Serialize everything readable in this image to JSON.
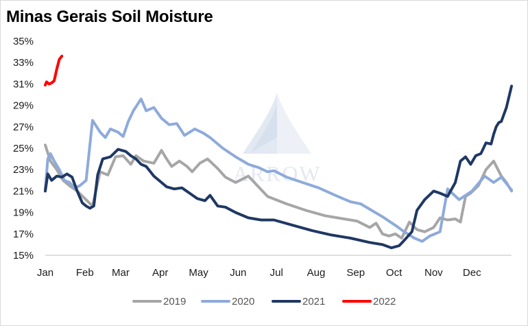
{
  "chart_data": {
    "type": "line",
    "title": "Minas Gerais Soil Moisture",
    "xlabel": "",
    "ylabel": "",
    "x_ticks": [
      "Jan",
      "Feb",
      "Mar",
      "Apr",
      "May",
      "Jun",
      "Jul",
      "Aug",
      "Sep",
      "Oct",
      "Nov",
      "Dec"
    ],
    "y_ticks": [
      "15%",
      "17%",
      "19%",
      "21%",
      "23%",
      "25%",
      "27%",
      "29%",
      "31%",
      "33%",
      "35%"
    ],
    "ylim": [
      15,
      35
    ],
    "xlim": [
      1,
      366
    ],
    "grid": false,
    "legend_position": "bottom",
    "watermark": "ARROW",
    "series": [
      {
        "name": "2019",
        "color": "#a6a6a6",
        "x": [
          1,
          5,
          10,
          15,
          20,
          26,
          32,
          38,
          44,
          50,
          56,
          62,
          68,
          72,
          78,
          86,
          92,
          96,
          100,
          106,
          112,
          116,
          122,
          128,
          136,
          142,
          150,
          160,
          175,
          190,
          205,
          220,
          235,
          245,
          255,
          260,
          265,
          270,
          275,
          280,
          286,
          292,
          298,
          305,
          310,
          316,
          322,
          326,
          330,
          334,
          340,
          346,
          352,
          358,
          362,
          366
        ],
        "y": [
          25.3,
          23.8,
          23,
          22,
          21.5,
          21,
          20.3,
          19.6,
          22.8,
          22.5,
          24.2,
          24.3,
          23.5,
          24.3,
          23.8,
          23.6,
          24.8,
          24,
          23.3,
          23.8,
          23.3,
          22.8,
          23.6,
          24,
          23.1,
          22.3,
          21.8,
          22.4,
          20.5,
          19.8,
          19.2,
          18.7,
          18.4,
          18.2,
          17.6,
          18,
          17,
          16.8,
          17,
          16.6,
          18.1,
          17.4,
          17.2,
          17.6,
          18.5,
          18.3,
          18.4,
          18.1,
          20.5,
          20.8,
          21.5,
          23,
          23.8,
          22.4,
          21.8,
          21
        ]
      },
      {
        "name": "2020",
        "color": "#8eaadb",
        "x": [
          1,
          3,
          5,
          8,
          12,
          16,
          20,
          24,
          28,
          33,
          38,
          44,
          48,
          52,
          58,
          62,
          66,
          70,
          76,
          80,
          86,
          92,
          98,
          104,
          110,
          118,
          125,
          130,
          140,
          150,
          160,
          168,
          175,
          180,
          190,
          200,
          215,
          230,
          240,
          248,
          255,
          265,
          275,
          282,
          290,
          296,
          302,
          310,
          316,
          325,
          335,
          345,
          352,
          358,
          366
        ],
        "y": [
          21.2,
          24,
          24.5,
          23.8,
          23,
          22,
          21.8,
          21.3,
          21.5,
          22,
          27.6,
          26.5,
          26,
          26.8,
          26.5,
          26.1,
          27.5,
          28.5,
          29.6,
          28.5,
          28.8,
          27.8,
          27.2,
          27.3,
          26.2,
          26.8,
          26.4,
          26,
          25,
          24.2,
          23.5,
          23.2,
          22.8,
          22.9,
          22.3,
          21.9,
          21.3,
          20.5,
          20,
          19.8,
          19.3,
          18.6,
          17.8,
          17.2,
          16.6,
          16.3,
          16.8,
          17.2,
          21.2,
          20.2,
          21,
          22.4,
          21.8,
          22.3,
          21.1
        ]
      },
      {
        "name": "2021",
        "color": "#1f3864",
        "x": [
          1,
          3,
          6,
          10,
          14,
          18,
          22,
          26,
          30,
          33,
          36,
          39,
          42,
          46,
          52,
          58,
          64,
          68,
          72,
          76,
          80,
          86,
          92,
          96,
          102,
          108,
          114,
          120,
          126,
          130,
          136,
          142,
          150,
          160,
          170,
          180,
          195,
          210,
          225,
          240,
          255,
          265,
          272,
          278,
          282,
          285,
          288,
          292,
          298,
          305,
          310,
          316,
          322,
          326,
          330,
          334,
          338,
          342,
          346,
          350,
          352,
          354,
          356,
          358,
          362,
          366
        ],
        "y": [
          21,
          22.6,
          22,
          22.4,
          22.3,
          22.6,
          22.3,
          21,
          19.9,
          19.6,
          19.4,
          19.6,
          22.5,
          24,
          24.2,
          24.9,
          24.7,
          24.3,
          24,
          23.5,
          23.3,
          22.4,
          21.8,
          21.4,
          21.2,
          21.3,
          20.8,
          20.3,
          20.1,
          20.6,
          19.6,
          19.5,
          19,
          18.5,
          18.3,
          18.3,
          17.8,
          17.3,
          16.9,
          16.6,
          16.2,
          16,
          15.7,
          15.9,
          16.4,
          16.8,
          17.2,
          19.2,
          20.2,
          21,
          20.8,
          20.5,
          21.8,
          23.8,
          24.2,
          23.5,
          24.3,
          24.5,
          25.5,
          25.4,
          26.3,
          27,
          27.4,
          27.5,
          28.8,
          30.8
        ]
      },
      {
        "name": "2022",
        "color": "#ff0000",
        "x": [
          1,
          2,
          4,
          6,
          8,
          10,
          12,
          14
        ],
        "y": [
          30.9,
          31.2,
          31.0,
          31.1,
          31.3,
          32.4,
          33.3,
          33.6
        ]
      }
    ]
  }
}
